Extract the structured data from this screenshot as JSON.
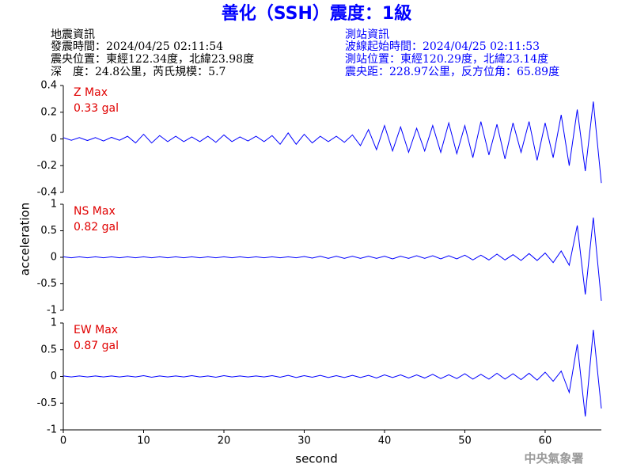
{
  "header": {
    "title": "善化（SSH）震度：1級",
    "quake": [
      "地震資訊",
      "發震時間：2024/04/25 02:11:54",
      "震央位置：東經122.34度，北緯23.98度",
      "深　度：24.8公里，芮氏規模：5.7"
    ],
    "station": [
      "測站資訊",
      "波線起始時間：2024/04/25 02:11:53",
      "測站位置：東經120.29度，北緯23.14度",
      "震央距：228.97公里，反方位角：65.89度"
    ]
  },
  "ylabel": "acceleration",
  "xlabel": "second",
  "footer": "中央氣象署",
  "chart_data": [
    {
      "type": "line",
      "title": "Z Max",
      "subtitle": "0.33 gal",
      "color": "#0000ff",
      "ylim": [
        -0.4,
        0.4
      ],
      "yticks": [
        -0.4,
        -0.2,
        0,
        0.2,
        0.4
      ],
      "xlim": [
        0,
        67
      ],
      "x": [
        0,
        1,
        2,
        3,
        4,
        5,
        6,
        7,
        8,
        9,
        10,
        11,
        12,
        13,
        14,
        15,
        16,
        17,
        18,
        19,
        20,
        21,
        22,
        23,
        24,
        25,
        26,
        27,
        28,
        29,
        30,
        31,
        32,
        33,
        34,
        35,
        36,
        37,
        38,
        39,
        40,
        41,
        42,
        43,
        44,
        45,
        46,
        47,
        48,
        49,
        50,
        51,
        52,
        53,
        54,
        55,
        56,
        57,
        58,
        59,
        60,
        61,
        62,
        63,
        64,
        65,
        66,
        67
      ],
      "values": [
        0.01,
        -0.01,
        0.01,
        -0.012,
        0.01,
        -0.015,
        0.012,
        -0.01,
        0.02,
        -0.03,
        0.035,
        -0.03,
        0.025,
        -0.02,
        0.02,
        -0.02,
        0.015,
        -0.02,
        0.02,
        -0.025,
        0.03,
        -0.02,
        0.015,
        -0.015,
        0.02,
        -0.02,
        0.025,
        -0.04,
        0.045,
        -0.04,
        0.035,
        -0.03,
        0.02,
        -0.02,
        0.02,
        -0.025,
        0.03,
        -0.05,
        0.07,
        -0.08,
        0.1,
        -0.09,
        0.09,
        -0.1,
        0.08,
        -0.09,
        0.1,
        -0.1,
        0.12,
        -0.11,
        0.1,
        -0.14,
        0.13,
        -0.12,
        0.11,
        -0.15,
        0.12,
        -0.1,
        0.13,
        -0.16,
        0.12,
        -0.14,
        0.18,
        -0.2,
        0.22,
        -0.24,
        0.28,
        -0.33
      ]
    },
    {
      "type": "line",
      "title": "NS Max",
      "subtitle": "0.82 gal",
      "color": "#0000ff",
      "ylim": [
        -1,
        1
      ],
      "yticks": [
        -1,
        -0.5,
        0,
        0.5,
        1
      ],
      "xlim": [
        0,
        67
      ],
      "x": [
        0,
        1,
        2,
        3,
        4,
        5,
        6,
        7,
        8,
        9,
        10,
        11,
        12,
        13,
        14,
        15,
        16,
        17,
        18,
        19,
        20,
        21,
        22,
        23,
        24,
        25,
        26,
        27,
        28,
        29,
        30,
        31,
        32,
        33,
        34,
        35,
        36,
        37,
        38,
        39,
        40,
        41,
        42,
        43,
        44,
        45,
        46,
        47,
        48,
        49,
        50,
        51,
        52,
        53,
        54,
        55,
        56,
        57,
        58,
        59,
        60,
        61,
        62,
        63,
        64,
        65,
        66,
        67
      ],
      "values": [
        0.01,
        -0.01,
        0.01,
        -0.01,
        0.01,
        -0.01,
        0.01,
        -0.01,
        0.01,
        -0.01,
        0.01,
        -0.01,
        0.01,
        -0.01,
        0.01,
        -0.01,
        0.01,
        -0.01,
        0.01,
        -0.01,
        0.01,
        -0.01,
        0.01,
        -0.01,
        0.01,
        -0.01,
        0.01,
        -0.01,
        0.01,
        -0.01,
        0.015,
        -0.015,
        0.02,
        -0.02,
        0.02,
        -0.02,
        0.02,
        -0.02,
        0.02,
        -0.02,
        0.02,
        -0.03,
        0.02,
        -0.02,
        0.03,
        -0.02,
        0.03,
        -0.03,
        0.03,
        -0.03,
        0.04,
        -0.05,
        0.04,
        -0.05,
        0.06,
        -0.05,
        0.05,
        -0.06,
        0.07,
        -0.06,
        0.08,
        -0.1,
        0.12,
        -0.15,
        0.6,
        -0.7,
        0.75,
        -0.82
      ]
    },
    {
      "type": "line",
      "title": "EW Max",
      "subtitle": "0.87 gal",
      "color": "#0000ff",
      "ylim": [
        -1,
        1
      ],
      "yticks": [
        -1,
        -0.5,
        0,
        0.5,
        1
      ],
      "xlim": [
        0,
        67
      ],
      "xticks": [
        0,
        10,
        20,
        30,
        40,
        50,
        60
      ],
      "x": [
        0,
        1,
        2,
        3,
        4,
        5,
        6,
        7,
        8,
        9,
        10,
        11,
        12,
        13,
        14,
        15,
        16,
        17,
        18,
        19,
        20,
        21,
        22,
        23,
        24,
        25,
        26,
        27,
        28,
        29,
        30,
        31,
        32,
        33,
        34,
        35,
        36,
        37,
        38,
        39,
        40,
        41,
        42,
        43,
        44,
        45,
        46,
        47,
        48,
        49,
        50,
        51,
        52,
        53,
        54,
        55,
        56,
        57,
        58,
        59,
        60,
        61,
        62,
        63,
        64,
        65,
        66,
        67
      ],
      "values": [
        0.01,
        -0.01,
        0.01,
        -0.01,
        0.01,
        -0.01,
        0.01,
        -0.01,
        0.01,
        -0.01,
        0.015,
        -0.015,
        0.01,
        -0.01,
        0.01,
        -0.01,
        0.015,
        -0.01,
        0.01,
        -0.015,
        0.015,
        -0.01,
        0.01,
        -0.01,
        0.01,
        -0.01,
        0.015,
        -0.015,
        0.02,
        -0.02,
        0.015,
        -0.015,
        0.02,
        -0.02,
        0.015,
        -0.02,
        0.02,
        -0.02,
        0.02,
        -0.03,
        0.03,
        -0.02,
        0.03,
        -0.03,
        0.03,
        -0.03,
        0.04,
        -0.04,
        0.03,
        -0.04,
        0.05,
        -0.05,
        0.04,
        -0.05,
        0.06,
        -0.05,
        0.05,
        -0.06,
        0.06,
        -0.07,
        0.08,
        -0.09,
        0.1,
        -0.3,
        0.6,
        -0.75,
        0.87,
        -0.6
      ]
    }
  ]
}
